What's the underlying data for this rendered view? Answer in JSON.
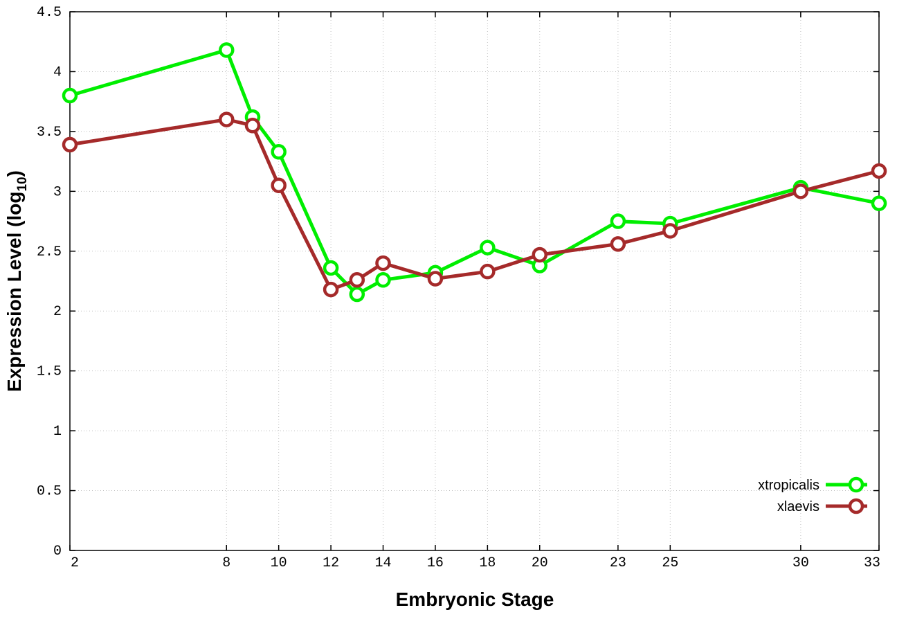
{
  "chart_data": {
    "type": "line",
    "title": "",
    "xlabel": "Embryonic Stage",
    "ylabel": {
      "main": "Expression Level (log",
      "subscript": "10",
      "close": ")"
    },
    "x": [
      2,
      8,
      9,
      10,
      12,
      13,
      14,
      16,
      18,
      20,
      23,
      25,
      30,
      33
    ],
    "xticks": [
      2,
      8,
      10,
      12,
      14,
      16,
      18,
      20,
      23,
      25,
      30,
      33
    ],
    "xlim": [
      2,
      33
    ],
    "yticks": [
      "0",
      "0.5",
      "1",
      "1.5",
      "2",
      "2.5",
      "3",
      "3.5",
      "4",
      "4.5"
    ],
    "ylim": [
      0,
      4.5
    ],
    "grid": true,
    "legend_position": "bottom-right",
    "series": [
      {
        "name": "xtropicalis",
        "color": "#00ee00",
        "values": [
          3.8,
          4.18,
          3.62,
          3.33,
          2.36,
          2.14,
          2.26,
          2.32,
          2.53,
          2.38,
          2.75,
          2.73,
          3.03,
          2.9
        ]
      },
      {
        "name": "xlaevis",
        "color": "#a52a2a",
        "values": [
          3.39,
          3.6,
          3.55,
          3.05,
          2.18,
          2.26,
          2.4,
          2.27,
          2.33,
          2.47,
          2.56,
          2.67,
          3.0,
          3.17
        ]
      }
    ]
  }
}
